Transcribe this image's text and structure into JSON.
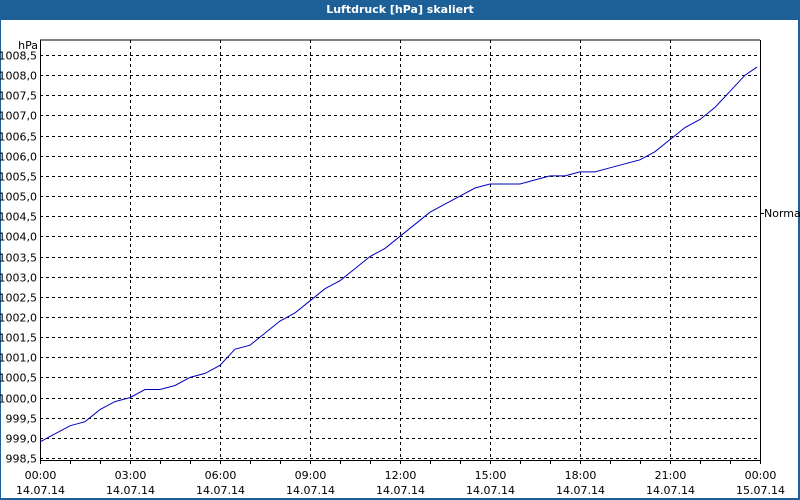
{
  "window": {
    "title": "Luftdruck [hPa] skaliert"
  },
  "colors": {
    "titlebar": "#1d5f97",
    "title_text": "#ffffff",
    "plot_background": "#ffffff",
    "grid": "#000000",
    "series_line": "#0000c0"
  },
  "chart_data": {
    "type": "line",
    "title": "Luftdruck [hPa] skaliert",
    "xlabel": "",
    "ylabel": "hPa",
    "ylim": [
      998.5,
      1008.5
    ],
    "grid": true,
    "legend": null,
    "annotations": [
      {
        "label": "Normal",
        "position": "right-axis",
        "value": 1004.6
      }
    ],
    "x_ticks": [
      {
        "time": "00:00",
        "date": "14.07.14"
      },
      {
        "time": "03:00",
        "date": "14.07.14"
      },
      {
        "time": "06:00",
        "date": "14.07.14"
      },
      {
        "time": "09:00",
        "date": "14.07.14"
      },
      {
        "time": "12:00",
        "date": "14.07.14"
      },
      {
        "time": "15:00",
        "date": "14.07.14"
      },
      {
        "time": "18:00",
        "date": "14.07.14"
      },
      {
        "time": "21:00",
        "date": "14.07.14"
      },
      {
        "time": "00:00",
        "date": "15.07.14"
      }
    ],
    "y_ticks": [
      "1008,5",
      "1008,0",
      "1007,5",
      "1007,0",
      "1006,5",
      "1006,0",
      "1005,5",
      "1005,0",
      "1004,5",
      "1004,0",
      "1003,5",
      "1003,0",
      "1002,5",
      "1002,0",
      "1001,5",
      "1001,0",
      "1000,5",
      "1000,0",
      "999,5",
      "999,0",
      "998,5"
    ],
    "series": [
      {
        "name": "Luftdruck",
        "x_hours": [
          0,
          0.5,
          1,
          1.5,
          2,
          2.5,
          3,
          3.5,
          4,
          4.5,
          5,
          5.5,
          6,
          6.5,
          7,
          7.5,
          8,
          8.5,
          9,
          9.5,
          10,
          10.5,
          11,
          11.5,
          12,
          12.5,
          13,
          13.5,
          14,
          14.5,
          15,
          15.5,
          16,
          16.5,
          17,
          17.5,
          18,
          18.5,
          19,
          19.5,
          20,
          20.5,
          21,
          21.5,
          22,
          22.5,
          23,
          23.5,
          23.9
        ],
        "values": [
          998.9,
          999.1,
          999.3,
          999.4,
          999.7,
          999.9,
          1000.0,
          1000.2,
          1000.2,
          1000.3,
          1000.5,
          1000.6,
          1000.8,
          1001.2,
          1001.3,
          1001.6,
          1001.9,
          1002.1,
          1002.4,
          1002.7,
          1002.9,
          1003.2,
          1003.5,
          1003.7,
          1004.0,
          1004.3,
          1004.6,
          1004.8,
          1005.0,
          1005.2,
          1005.3,
          1005.3,
          1005.3,
          1005.4,
          1005.5,
          1005.5,
          1005.6,
          1005.6,
          1005.7,
          1005.8,
          1005.9,
          1006.1,
          1006.4,
          1006.7,
          1006.9,
          1007.2,
          1007.6,
          1008.0,
          1008.2
        ]
      }
    ]
  }
}
